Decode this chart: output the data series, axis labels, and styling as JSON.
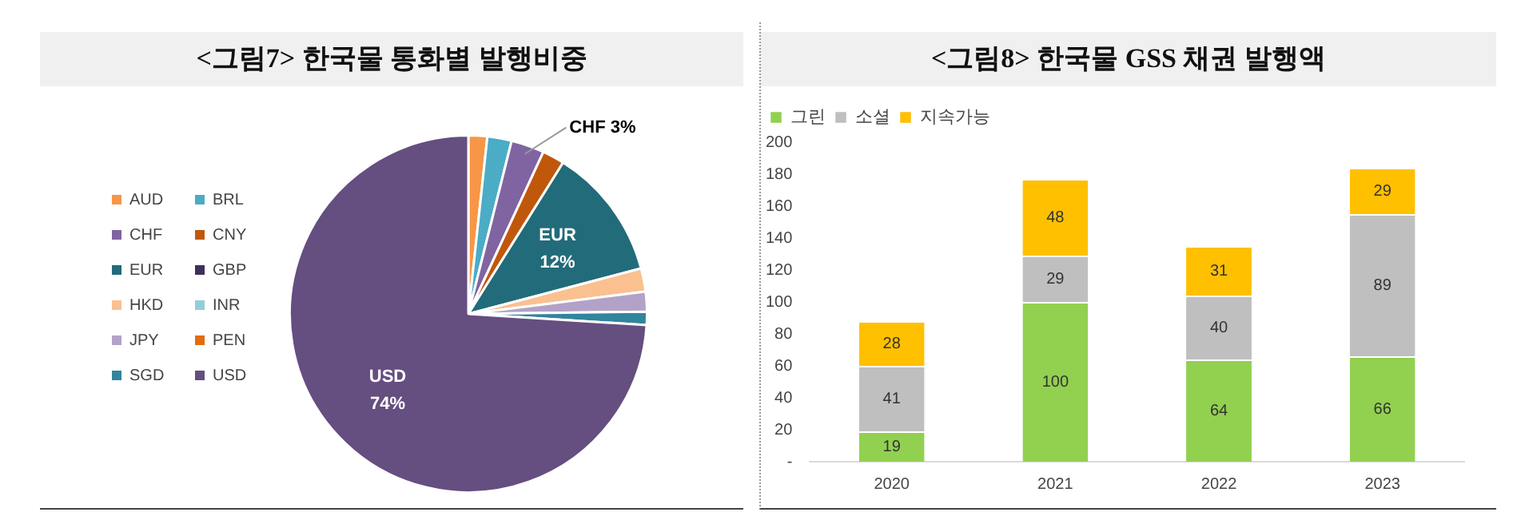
{
  "chart_data": [
    {
      "type": "pie",
      "title": "<그림7> 한국물 통화별 발행비중",
      "categories": [
        "AUD",
        "BRL",
        "CHF",
        "CNY",
        "EUR",
        "GBP",
        "HKD",
        "INR",
        "JPY",
        "PEN",
        "SGD",
        "USD"
      ],
      "values": [
        1.7,
        2.2,
        3,
        2,
        12,
        0,
        2.1,
        0,
        1.8,
        0,
        1.2,
        74
      ],
      "colors": [
        "#f79646",
        "#4bacc6",
        "#8064a2",
        "#c0580c",
        "#226b7a",
        "#3f2f5a",
        "#fac090",
        "#93cddd",
        "#b3a2c7",
        "#e46c0a",
        "#31859c",
        "#654e80"
      ],
      "value_labels": [
        null,
        null,
        "3%",
        null,
        "12%",
        null,
        null,
        null,
        null,
        null,
        null,
        "74%"
      ],
      "legend": "left"
    },
    {
      "type": "bar",
      "title": "<그림8> 한국물 GSS 채권 발행액",
      "categories": [
        "2020",
        "2021",
        "2022",
        "2023"
      ],
      "stacked": true,
      "series": [
        {
          "name": "그린",
          "color": "#92d050",
          "values": [
            19,
            100,
            64,
            66
          ]
        },
        {
          "name": "소셜",
          "color": "#bfbfbf",
          "values": [
            41,
            29,
            40,
            89
          ]
        },
        {
          "name": "지속가능",
          "color": "#ffc000",
          "values": [
            28,
            48,
            31,
            29
          ]
        }
      ],
      "ylim": [
        0,
        200
      ],
      "yticks": [
        {
          "value": 0,
          "label": "-"
        },
        20,
        40,
        60,
        80,
        100,
        120,
        140,
        160,
        180,
        200
      ],
      "grid": false,
      "data_labels": true,
      "legend": "top left"
    }
  ]
}
